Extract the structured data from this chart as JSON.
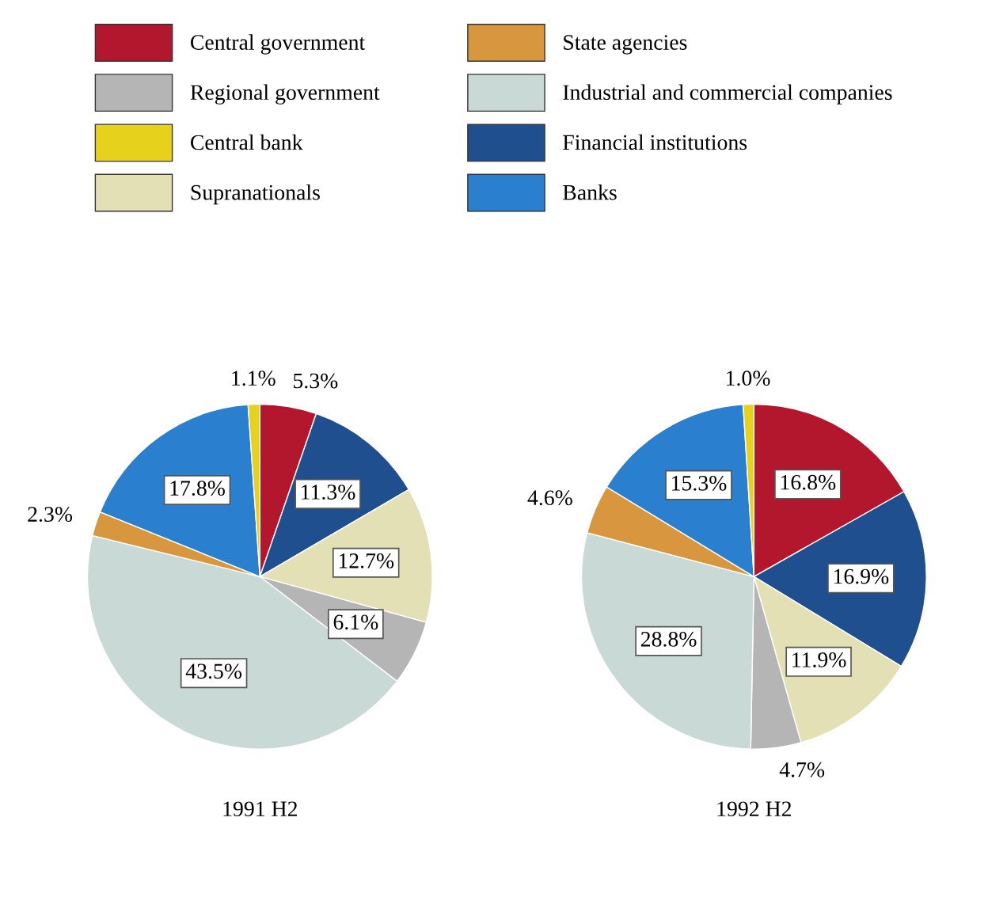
{
  "chart_data": [
    {
      "type": "pie",
      "title": "1991 H2",
      "legend": "top",
      "categories": [
        "Central government",
        "Financial institutions",
        "Supranationals",
        "Regional government",
        "Industrial and commercial companies",
        "State agencies",
        "Banks",
        "Central bank"
      ],
      "values": [
        5.3,
        11.3,
        12.7,
        6.1,
        43.5,
        2.3,
        17.8,
        1.1
      ],
      "value_labels": [
        "5.3%",
        "11.3%",
        "12.7%",
        "6.1%",
        "43.5%",
        "2.3%",
        "17.8%",
        "1.1%"
      ],
      "colors": [
        "#b3172d",
        "#1f4f8e",
        "#e2e0b4",
        "#b5b5b5",
        "#c9d9d6",
        "#d8963e",
        "#2b7fcf",
        "#e6d21c"
      ]
    },
    {
      "type": "pie",
      "title": "1992 H2",
      "categories": [
        null,
        null,
        null,
        null,
        null,
        null,
        null,
        null
      ],
      "values": [
        16.8,
        16.9,
        11.9,
        4.7,
        28.8,
        4.6,
        15.3,
        1.0
      ],
      "value_labels": [
        "16.8%",
        "16.9%",
        "11.9%",
        "4.7%",
        "28.8%",
        "4.6%",
        "15.3%",
        "1.0%"
      ],
      "colors": [
        "#b3172d",
        "#1f4f8e",
        "#e2e0b4",
        "#b5b5b5",
        "#c9d9d6",
        "#d8963e",
        "#2b7fcf",
        "#e6d21c"
      ]
    }
  ]
}
